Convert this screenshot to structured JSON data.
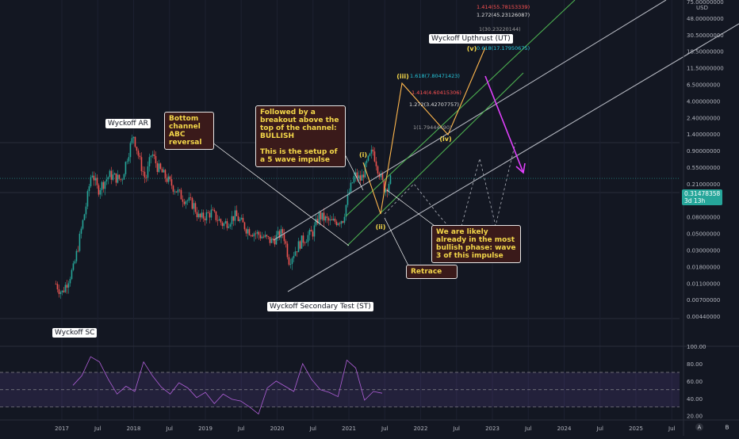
{
  "chart_data": {
    "type": "candlestick",
    "price_axis": {
      "scale": "log",
      "currency_label": "USD",
      "tick_labels": [
        "75.00000000",
        "48.00000000",
        "30.50000000",
        "18.50000000",
        "11.50000000",
        "6.50000000",
        "4.00000000",
        "2.40000000",
        "1.40000000",
        "0.90000000",
        "0.55000000",
        "0.21000000",
        "0.13000000",
        "0.08000000",
        "0.05000000",
        "0.03000000",
        "0.01800000",
        "0.01100000",
        "0.00700000",
        "0.00440000"
      ],
      "last_price_label": "0.31478358",
      "last_price_sub": "3d 13h",
      "last_price_value": 0.31478358
    },
    "time_axis": {
      "tick_labels": [
        "2017",
        "Jul",
        "2018",
        "Jul",
        "2019",
        "Jul",
        "2020",
        "Jul",
        "2021",
        "Jul",
        "2022",
        "Jul",
        "2023",
        "Jul",
        "2024",
        "Jul",
        "2025",
        "Jul"
      ]
    },
    "price_path": [
      {
        "d": "2016-12",
        "v": 0.012
      },
      {
        "d": "2017-01",
        "v": 0.009
      },
      {
        "d": "2017-03",
        "v": 0.02
      },
      {
        "d": "2017-05",
        "v": 0.13
      },
      {
        "d": "2017-06",
        "v": 0.4
      },
      {
        "d": "2017-07",
        "v": 0.22
      },
      {
        "d": "2017-09",
        "v": 0.35
      },
      {
        "d": "2017-11",
        "v": 0.3
      },
      {
        "d": "2017-12",
        "v": 0.65
      },
      {
        "d": "2018-01",
        "v": 1.2
      },
      {
        "d": "2018-02",
        "v": 0.55
      },
      {
        "d": "2018-03",
        "v": 0.3
      },
      {
        "d": "2018-04",
        "v": 0.7
      },
      {
        "d": "2018-05",
        "v": 0.45
      },
      {
        "d": "2018-07",
        "v": 0.28
      },
      {
        "d": "2018-09",
        "v": 0.18
      },
      {
        "d": "2018-11",
        "v": 0.14
      },
      {
        "d": "2018-12",
        "v": 0.09
      },
      {
        "d": "2019-02",
        "v": 0.11
      },
      {
        "d": "2019-04",
        "v": 0.075
      },
      {
        "d": "2019-06",
        "v": 0.1
      },
      {
        "d": "2019-08",
        "v": 0.065
      },
      {
        "d": "2019-10",
        "v": 0.055
      },
      {
        "d": "2019-12",
        "v": 0.045
      },
      {
        "d": "2020-02",
        "v": 0.06
      },
      {
        "d": "2020-03",
        "v": 0.025
      },
      {
        "d": "2020-05",
        "v": 0.045
      },
      {
        "d": "2020-07",
        "v": 0.06
      },
      {
        "d": "2020-08",
        "v": 0.1
      },
      {
        "d": "2020-10",
        "v": 0.08
      },
      {
        "d": "2020-12",
        "v": 0.09
      },
      {
        "d": "2021-01",
        "v": 0.2
      },
      {
        "d": "2021-02",
        "v": 0.35
      },
      {
        "d": "2021-03",
        "v": 0.3
      },
      {
        "d": "2021-04",
        "v": 0.5
      },
      {
        "d": "2021-05",
        "v": 0.75
      },
      {
        "d": "2021-06",
        "v": 0.4
      },
      {
        "d": "2021-07",
        "v": 0.22
      },
      {
        "d": "2021-08",
        "v": 0.31
      }
    ],
    "fib_labels": [
      {
        "text": "1.414(55.78153339)",
        "color": "#ff5252"
      },
      {
        "text": "1.272(45.23126087)",
        "color": "#e0e0e0"
      },
      {
        "text": "1(30.23220144)",
        "color": "#9e9e9e"
      },
      {
        "text": "0.618(17.17950675)",
        "color": "#26c6da"
      },
      {
        "text": "1.618(7.80471423)",
        "color": "#26c6da"
      },
      {
        "text": "1.414(4.60415306)",
        "color": "#ff5252"
      },
      {
        "text": "1.272(3.42707757)",
        "color": "#e0e0e0"
      },
      {
        "text": "1(1.79444490)",
        "color": "#9e9e9e"
      }
    ],
    "wave_labels": [
      "(i)",
      "(ii)",
      "(iii)",
      "(iv)",
      "(v)"
    ],
    "annotations": {
      "wyckoff_ar": "Wyckoff AR",
      "wyckoff_sc": "Wyckoff SC",
      "wyckoff_st": "Wyckoff Secondary Test (ST)",
      "wyckoff_ut": "Wyckoff Upthrust (UT)",
      "bottom_channel": "Bottom channel ABC reversal",
      "breakout": "Followed by a breakout above the top of the channel: BULLISH\n\nThis is the setup of a 5 wave impulse",
      "bullish_phase": "We are likely already in the most bullish phase: wave 3 of this impulse",
      "retrace": "Retrace"
    },
    "oscillator": {
      "tick_labels": [
        "100.00",
        "80.00",
        "60.00",
        "40.00",
        "20.00"
      ],
      "values": [
        55,
        66,
        88,
        82,
        62,
        45,
        54,
        48,
        82,
        66,
        53,
        45,
        58,
        52,
        41,
        47,
        34,
        45,
        39,
        37,
        30,
        22,
        52,
        60,
        54,
        48,
        80,
        62,
        50,
        47,
        42,
        84,
        75,
        38,
        48,
        46
      ]
    },
    "colors": {
      "up": "#26a69a",
      "down": "#ef5350",
      "osc": "#b05fd8",
      "background": "#131722"
    }
  },
  "toolbar": {
    "auto_label": "A",
    "settings_label": "B"
  }
}
